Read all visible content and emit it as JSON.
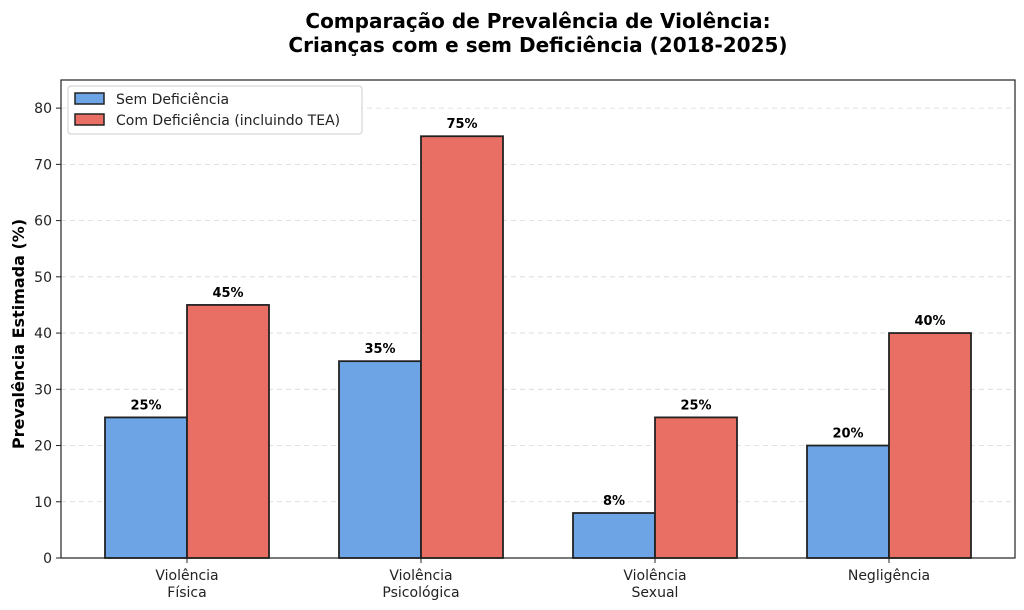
{
  "chart_data": {
    "type": "bar",
    "title": [
      "Comparação de Prevalência de Violência:",
      "Crianças com e sem Deficiência (2018-2025)"
    ],
    "xlabel": "",
    "ylabel": "Prevalência Estimada (%)",
    "ylim": [
      0,
      85
    ],
    "yticks": [
      0,
      10,
      20,
      30,
      40,
      50,
      60,
      70,
      80
    ],
    "grid": "y-dashed",
    "legend_position": "top-left",
    "categories": [
      [
        "Violência",
        "Física"
      ],
      [
        "Violência",
        "Psicológica"
      ],
      [
        "Violência",
        "Sexual"
      ],
      [
        "Negligência"
      ]
    ],
    "series": [
      {
        "name": "Sem Deficiência",
        "color": "#6ca4e6",
        "values": [
          25,
          35,
          8,
          20
        ],
        "labels": [
          "25%",
          "35%",
          "8%",
          "20%"
        ]
      },
      {
        "name": "Com Deficiência (incluindo TEA)",
        "color": "#e96e63",
        "values": [
          45,
          75,
          25,
          40
        ],
        "labels": [
          "45%",
          "75%",
          "25%",
          "40%"
        ]
      }
    ]
  }
}
